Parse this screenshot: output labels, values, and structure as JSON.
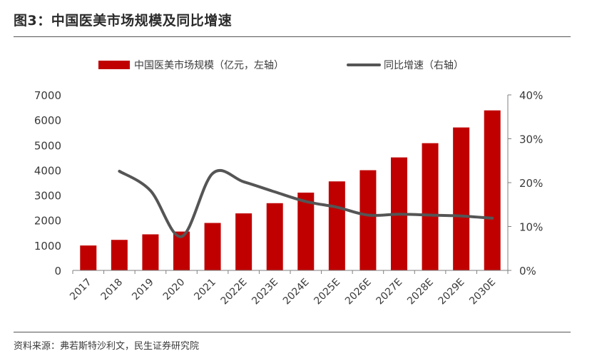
{
  "title": "图3：中国医美市场规模及同比增速",
  "source": "资料来源：弗若斯特沙利文，民生证券研究院",
  "colors": {
    "bar": "#c00000",
    "line": "#555555",
    "axis": "#7f7f7f",
    "text": "#3a3a3a"
  },
  "chart_data": {
    "type": "bar",
    "categories": [
      "2017",
      "2018",
      "2019",
      "2020",
      "2021",
      "2022E",
      "2023E",
      "2024E",
      "2025E",
      "2026E",
      "2027E",
      "2028E",
      "2029E",
      "2030E"
    ],
    "series": [
      {
        "name": "中国医美市场规模（亿元，左轴）",
        "type": "bar",
        "axis": "left",
        "values": [
          993,
          1217,
          1438,
          1549,
          1892,
          2274,
          2681,
          3102,
          3550,
          3996,
          4506,
          5074,
          5701,
          6382
        ]
      },
      {
        "name": "同比增速（右轴）",
        "type": "line",
        "axis": "right",
        "values": [
          null,
          22.6,
          18.2,
          7.7,
          22.1,
          20.2,
          17.9,
          15.7,
          14.4,
          12.6,
          12.8,
          12.6,
          12.4,
          11.9
        ]
      }
    ],
    "left_axis": {
      "min": 0,
      "max": 7000,
      "step": 1000,
      "ticks": [
        "0",
        "1000",
        "2000",
        "3000",
        "4000",
        "5000",
        "6000",
        "7000"
      ]
    },
    "right_axis": {
      "min": 0,
      "max": 40,
      "step": 10,
      "ticks": [
        "0%",
        "10%",
        "20%",
        "30%",
        "40%"
      ]
    },
    "legend_position": "top",
    "grid": false,
    "xlabel": "",
    "ylabel": ""
  }
}
